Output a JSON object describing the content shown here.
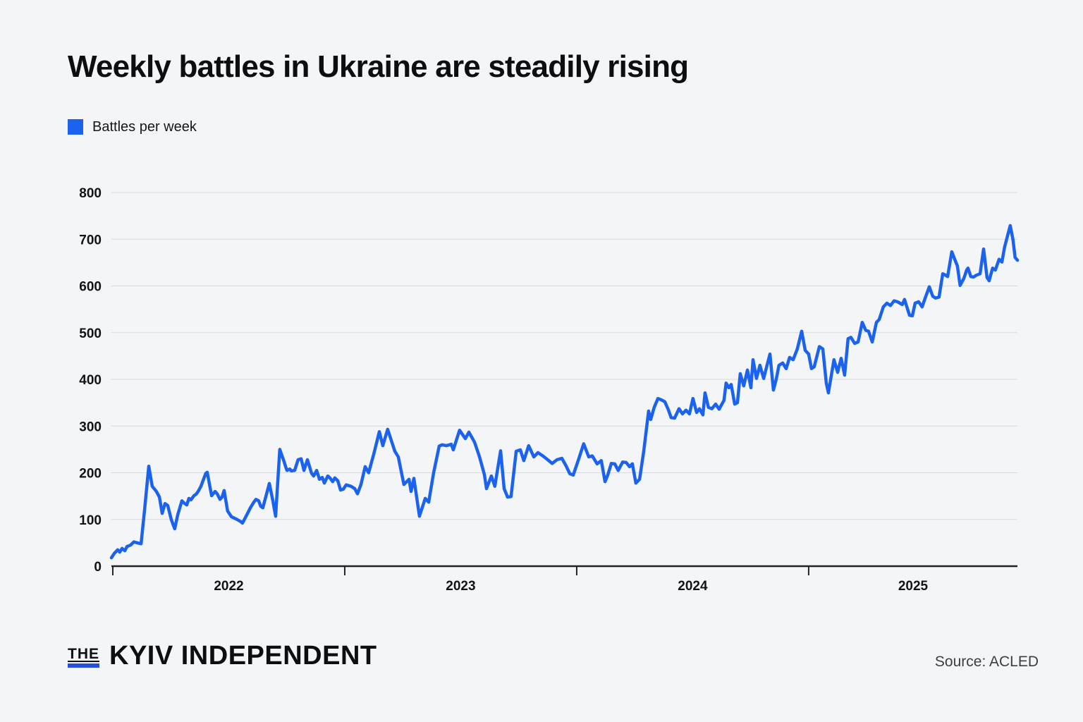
{
  "colors": {
    "background": "#f4f5f7",
    "accent_blue": "#1b63ee",
    "logo_bar_blue": "#2450dd"
  },
  "header": {
    "title": "Weekly battles in Ukraine are steadily rising"
  },
  "legend": {
    "label": "Battles per week",
    "swatch_color": "#1b63ee"
  },
  "footer": {
    "brand_the": "THE",
    "brand_name": "KYIV INDEPENDENT",
    "source": "Source: ACLED"
  },
  "chart_data": {
    "type": "line",
    "title": "Weekly battles in Ukraine are steadily rising",
    "series_name": "Battles per week",
    "line_color": "#1b63ee",
    "grid": true,
    "legend_position": "top-left",
    "x_axis": {
      "domain": [
        2021.994,
        2025.9
      ],
      "ticks": [
        2022,
        2023,
        2024,
        2025
      ],
      "labels": [
        "2022",
        "2023",
        "2024",
        "2025"
      ],
      "unit": "year, weekly data"
    },
    "y_axis": {
      "domain": [
        0,
        800
      ],
      "ticks": [
        0,
        100,
        200,
        300,
        400,
        500,
        600,
        700,
        800
      ]
    },
    "points": [
      [
        2021.994,
        18
      ],
      [
        2022.006,
        27
      ],
      [
        2022.021,
        35
      ],
      [
        2022.03,
        30
      ],
      [
        2022.04,
        38
      ],
      [
        2022.052,
        33
      ],
      [
        2022.061,
        42
      ],
      [
        2022.076,
        45
      ],
      [
        2022.091,
        52
      ],
      [
        2022.106,
        50
      ],
      [
        2022.122,
        48
      ],
      [
        2022.137,
        120
      ],
      [
        2022.155,
        214
      ],
      [
        2022.17,
        171
      ],
      [
        2022.188,
        160
      ],
      [
        2022.201,
        148
      ],
      [
        2022.213,
        113
      ],
      [
        2022.225,
        134
      ],
      [
        2022.237,
        130
      ],
      [
        2022.252,
        100
      ],
      [
        2022.267,
        80
      ],
      [
        2022.28,
        110
      ],
      [
        2022.289,
        125
      ],
      [
        2022.298,
        140
      ],
      [
        2022.31,
        134
      ],
      [
        2022.319,
        131
      ],
      [
        2022.328,
        145
      ],
      [
        2022.337,
        142
      ],
      [
        2022.35,
        151
      ],
      [
        2022.359,
        154
      ],
      [
        2022.368,
        160
      ],
      [
        2022.38,
        171
      ],
      [
        2022.389,
        183
      ],
      [
        2022.401,
        199
      ],
      [
        2022.407,
        201
      ],
      [
        2022.426,
        151
      ],
      [
        2022.441,
        160
      ],
      [
        2022.45,
        155
      ],
      [
        2022.462,
        143
      ],
      [
        2022.471,
        148
      ],
      [
        2022.48,
        162
      ],
      [
        2022.495,
        118
      ],
      [
        2022.511,
        106
      ],
      [
        2022.532,
        101
      ],
      [
        2022.553,
        95
      ],
      [
        2022.559,
        92
      ],
      [
        2022.578,
        110
      ],
      [
        2022.593,
        125
      ],
      [
        2022.608,
        137
      ],
      [
        2022.617,
        143
      ],
      [
        2022.629,
        140
      ],
      [
        2022.638,
        128
      ],
      [
        2022.647,
        125
      ],
      [
        2022.663,
        155
      ],
      [
        2022.675,
        177
      ],
      [
        2022.69,
        140
      ],
      [
        2022.702,
        107
      ],
      [
        2022.72,
        250
      ],
      [
        2022.739,
        223
      ],
      [
        2022.745,
        213
      ],
      [
        2022.751,
        205
      ],
      [
        2022.763,
        208
      ],
      [
        2022.769,
        204
      ],
      [
        2022.784,
        205
      ],
      [
        2022.799,
        228
      ],
      [
        2022.812,
        230
      ],
      [
        2022.824,
        205
      ],
      [
        2022.839,
        228
      ],
      [
        2022.857,
        199
      ],
      [
        2022.866,
        193
      ],
      [
        2022.879,
        205
      ],
      [
        2022.891,
        186
      ],
      [
        2022.903,
        190
      ],
      [
        2022.912,
        178
      ],
      [
        2022.927,
        193
      ],
      [
        2022.936,
        189
      ],
      [
        2022.948,
        181
      ],
      [
        2022.957,
        189
      ],
      [
        2022.97,
        183
      ],
      [
        2022.982,
        163
      ],
      [
        2022.994,
        165
      ],
      [
        2023.006,
        174
      ],
      [
        2023.027,
        171
      ],
      [
        2023.043,
        166
      ],
      [
        2023.055,
        155
      ],
      [
        2023.07,
        175
      ],
      [
        2023.088,
        213
      ],
      [
        2023.103,
        200
      ],
      [
        2023.125,
        240
      ],
      [
        2023.149,
        288
      ],
      [
        2023.164,
        258
      ],
      [
        2023.185,
        293
      ],
      [
        2023.216,
        246
      ],
      [
        2023.231,
        234
      ],
      [
        2023.255,
        175
      ],
      [
        2023.277,
        186
      ],
      [
        2023.286,
        160
      ],
      [
        2023.298,
        188
      ],
      [
        2023.322,
        107
      ],
      [
        2023.347,
        145
      ],
      [
        2023.362,
        137
      ],
      [
        2023.383,
        200
      ],
      [
        2023.407,
        257
      ],
      [
        2023.42,
        260
      ],
      [
        2023.438,
        258
      ],
      [
        2023.459,
        261
      ],
      [
        2023.468,
        249
      ],
      [
        2023.495,
        291
      ],
      [
        2023.52,
        273
      ],
      [
        2023.535,
        287
      ],
      [
        2023.559,
        266
      ],
      [
        2023.581,
        234
      ],
      [
        2023.602,
        196
      ],
      [
        2023.611,
        166
      ],
      [
        2023.632,
        193
      ],
      [
        2023.647,
        171
      ],
      [
        2023.672,
        247
      ],
      [
        2023.687,
        166
      ],
      [
        2023.702,
        148
      ],
      [
        2023.717,
        149
      ],
      [
        2023.739,
        246
      ],
      [
        2023.757,
        249
      ],
      [
        2023.772,
        226
      ],
      [
        2023.793,
        258
      ],
      [
        2023.815,
        234
      ],
      [
        2023.833,
        243
      ],
      [
        2023.854,
        236
      ],
      [
        2023.875,
        228
      ],
      [
        2023.894,
        220
      ],
      [
        2023.915,
        228
      ],
      [
        2023.936,
        231
      ],
      [
        2023.954,
        215
      ],
      [
        2023.97,
        198
      ],
      [
        2023.985,
        195
      ],
      [
        2024.009,
        230
      ],
      [
        2024.03,
        262
      ],
      [
        2024.052,
        234
      ],
      [
        2024.067,
        236
      ],
      [
        2024.088,
        219
      ],
      [
        2024.106,
        226
      ],
      [
        2024.122,
        181
      ],
      [
        2024.134,
        195
      ],
      [
        2024.149,
        220
      ],
      [
        2024.164,
        219
      ],
      [
        2024.179,
        205
      ],
      [
        2024.198,
        223
      ],
      [
        2024.213,
        222
      ],
      [
        2024.228,
        213
      ],
      [
        2024.24,
        219
      ],
      [
        2024.255,
        178
      ],
      [
        2024.271,
        186
      ],
      [
        2024.289,
        246
      ],
      [
        2024.31,
        332
      ],
      [
        2024.319,
        314
      ],
      [
        2024.334,
        340
      ],
      [
        2024.35,
        359
      ],
      [
        2024.365,
        356
      ],
      [
        2024.38,
        352
      ],
      [
        2024.395,
        335
      ],
      [
        2024.407,
        318
      ],
      [
        2024.422,
        317
      ],
      [
        2024.441,
        337
      ],
      [
        2024.456,
        326
      ],
      [
        2024.471,
        334
      ],
      [
        2024.486,
        326
      ],
      [
        2024.501,
        359
      ],
      [
        2024.517,
        329
      ],
      [
        2024.529,
        337
      ],
      [
        2024.544,
        324
      ],
      [
        2024.553,
        371
      ],
      [
        2024.568,
        340
      ],
      [
        2024.583,
        337
      ],
      [
        2024.599,
        347
      ],
      [
        2024.614,
        336
      ],
      [
        2024.635,
        355
      ],
      [
        2024.644,
        392
      ],
      [
        2024.656,
        382
      ],
      [
        2024.666,
        389
      ],
      [
        2024.681,
        347
      ],
      [
        2024.693,
        350
      ],
      [
        2024.705,
        412
      ],
      [
        2024.72,
        386
      ],
      [
        2024.736,
        420
      ],
      [
        2024.751,
        382
      ],
      [
        2024.76,
        442
      ],
      [
        2024.775,
        402
      ],
      [
        2024.79,
        430
      ],
      [
        2024.806,
        402
      ],
      [
        2024.818,
        425
      ],
      [
        2024.833,
        454
      ],
      [
        2024.848,
        377
      ],
      [
        2024.86,
        400
      ],
      [
        2024.872,
        430
      ],
      [
        2024.888,
        435
      ],
      [
        2024.903,
        423
      ],
      [
        2024.918,
        447
      ],
      [
        2024.933,
        442
      ],
      [
        2024.951,
        465
      ],
      [
        2024.97,
        503
      ],
      [
        2024.985,
        462
      ],
      [
        2025.0,
        454
      ],
      [
        2025.012,
        423
      ],
      [
        2025.024,
        427
      ],
      [
        2025.046,
        470
      ],
      [
        2025.061,
        465
      ],
      [
        2025.076,
        392
      ],
      [
        2025.085,
        371
      ],
      [
        2025.109,
        442
      ],
      [
        2025.125,
        415
      ],
      [
        2025.14,
        445
      ],
      [
        2025.155,
        409
      ],
      [
        2025.17,
        487
      ],
      [
        2025.182,
        490
      ],
      [
        2025.198,
        477
      ],
      [
        2025.213,
        480
      ],
      [
        2025.231,
        522
      ],
      [
        2025.246,
        505
      ],
      [
        2025.258,
        503
      ],
      [
        2025.274,
        480
      ],
      [
        2025.292,
        522
      ],
      [
        2025.304,
        528
      ],
      [
        2025.322,
        555
      ],
      [
        2025.337,
        563
      ],
      [
        2025.353,
        558
      ],
      [
        2025.368,
        568
      ],
      [
        2025.383,
        566
      ],
      [
        2025.404,
        560
      ],
      [
        2025.413,
        571
      ],
      [
        2025.435,
        537
      ],
      [
        2025.447,
        536
      ],
      [
        2025.459,
        563
      ],
      [
        2025.474,
        566
      ],
      [
        2025.489,
        555
      ],
      [
        2025.505,
        578
      ],
      [
        2025.52,
        598
      ],
      [
        2025.535,
        578
      ],
      [
        2025.547,
        574
      ],
      [
        2025.562,
        576
      ],
      [
        2025.578,
        626
      ],
      [
        2025.59,
        623
      ],
      [
        2025.599,
        620
      ],
      [
        2025.617,
        673
      ],
      [
        2025.632,
        654
      ],
      [
        2025.641,
        643
      ],
      [
        2025.653,
        601
      ],
      [
        2025.669,
        616
      ],
      [
        2025.681,
        634
      ],
      [
        2025.687,
        638
      ],
      [
        2025.699,
        620
      ],
      [
        2025.711,
        619
      ],
      [
        2025.723,
        623
      ],
      [
        2025.739,
        626
      ],
      [
        2025.754,
        679
      ],
      [
        2025.769,
        618
      ],
      [
        2025.778,
        611
      ],
      [
        2025.793,
        638
      ],
      [
        2025.805,
        634
      ],
      [
        2025.821,
        657
      ],
      [
        2025.833,
        651
      ],
      [
        2025.845,
        684
      ],
      [
        2025.869,
        729
      ],
      [
        2025.881,
        699
      ],
      [
        2025.89,
        661
      ],
      [
        2025.9,
        655
      ]
    ]
  }
}
